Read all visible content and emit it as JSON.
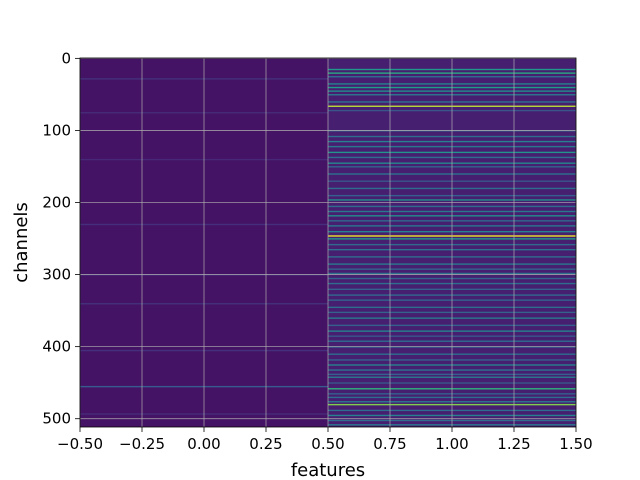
{
  "chart_data": {
    "type": "heatmap",
    "title": "",
    "xlabel": "features",
    "ylabel": "channels",
    "xlim": [
      -0.5,
      1.5
    ],
    "ylim": [
      511.5,
      -0.5
    ],
    "xticks": [
      -0.5,
      -0.25,
      0.0,
      0.25,
      0.5,
      0.75,
      1.0,
      1.25,
      1.5
    ],
    "xtick_labels": [
      "−0.50",
      "−0.25",
      "0.00",
      "0.25",
      "0.50",
      "0.75",
      "1.00",
      "1.25",
      "1.50"
    ],
    "yticks": [
      0,
      100,
      200,
      300,
      400,
      500
    ],
    "ytick_labels": [
      "0",
      "100",
      "200",
      "300",
      "400",
      "500"
    ],
    "grid": true,
    "colormap": "viridis",
    "n_columns": 2,
    "n_rows": 512,
    "column_0": {
      "baseline": 0.06,
      "highlights": [
        {
          "row": 28,
          "value": 0.16
        },
        {
          "row": 75,
          "value": 0.14
        },
        {
          "row": 140,
          "value": 0.13
        },
        {
          "row": 230,
          "value": 0.15
        },
        {
          "row": 300,
          "value": 0.14
        },
        {
          "row": 340,
          "value": 0.16
        },
        {
          "row": 405,
          "value": 0.15
        },
        {
          "row": 455,
          "value": 0.32
        },
        {
          "row": 493,
          "value": 0.14
        }
      ]
    },
    "column_1": {
      "baseline": 0.1,
      "highlights": [
        {
          "row": 15,
          "value": 0.6
        },
        {
          "row": 20,
          "value": 0.68
        },
        {
          "row": 25,
          "value": 0.4
        },
        {
          "row": 35,
          "value": 0.5
        },
        {
          "row": 40,
          "value": 0.62
        },
        {
          "row": 45,
          "value": 0.55
        },
        {
          "row": 50,
          "value": 0.45
        },
        {
          "row": 60,
          "value": 0.42
        },
        {
          "row": 66,
          "value": 0.92
        },
        {
          "row": 72,
          "value": 0.3
        },
        {
          "row": 100,
          "value": 0.35
        },
        {
          "row": 108,
          "value": 0.4
        },
        {
          "row": 115,
          "value": 0.5
        },
        {
          "row": 122,
          "value": 0.45
        },
        {
          "row": 130,
          "value": 0.58
        },
        {
          "row": 137,
          "value": 0.4
        },
        {
          "row": 145,
          "value": 0.52
        },
        {
          "row": 150,
          "value": 0.36
        },
        {
          "row": 160,
          "value": 0.42
        },
        {
          "row": 170,
          "value": 0.3
        },
        {
          "row": 180,
          "value": 0.4
        },
        {
          "row": 190,
          "value": 0.34
        },
        {
          "row": 196,
          "value": 0.55
        },
        {
          "row": 205,
          "value": 0.4
        },
        {
          "row": 212,
          "value": 0.45
        },
        {
          "row": 218,
          "value": 0.55
        },
        {
          "row": 225,
          "value": 0.38
        },
        {
          "row": 232,
          "value": 0.45
        },
        {
          "row": 240,
          "value": 0.5
        },
        {
          "row": 246,
          "value": 0.98
        },
        {
          "row": 250,
          "value": 0.6
        },
        {
          "row": 258,
          "value": 0.38
        },
        {
          "row": 265,
          "value": 0.42
        },
        {
          "row": 275,
          "value": 0.4
        },
        {
          "row": 285,
          "value": 0.45
        },
        {
          "row": 292,
          "value": 0.35
        },
        {
          "row": 298,
          "value": 0.42
        },
        {
          "row": 305,
          "value": 0.35
        },
        {
          "row": 312,
          "value": 0.4
        },
        {
          "row": 320,
          "value": 0.35
        },
        {
          "row": 328,
          "value": 0.38
        },
        {
          "row": 335,
          "value": 0.36
        },
        {
          "row": 345,
          "value": 0.4
        },
        {
          "row": 352,
          "value": 0.35
        },
        {
          "row": 360,
          "value": 0.45
        },
        {
          "row": 370,
          "value": 0.34
        },
        {
          "row": 378,
          "value": 0.5
        },
        {
          "row": 385,
          "value": 0.3
        },
        {
          "row": 392,
          "value": 0.4
        },
        {
          "row": 400,
          "value": 0.35
        },
        {
          "row": 410,
          "value": 0.4
        },
        {
          "row": 418,
          "value": 0.35
        },
        {
          "row": 425,
          "value": 0.5
        },
        {
          "row": 432,
          "value": 0.42
        },
        {
          "row": 438,
          "value": 0.35
        },
        {
          "row": 442,
          "value": 0.45
        },
        {
          "row": 450,
          "value": 0.3
        },
        {
          "row": 458,
          "value": 0.72
        },
        {
          "row": 465,
          "value": 0.34
        },
        {
          "row": 470,
          "value": 0.4
        },
        {
          "row": 476,
          "value": 0.45
        },
        {
          "row": 480,
          "value": 0.85
        },
        {
          "row": 488,
          "value": 0.4
        },
        {
          "row": 495,
          "value": 0.5
        },
        {
          "row": 502,
          "value": 0.4
        },
        {
          "row": 508,
          "value": 0.45
        }
      ]
    }
  }
}
